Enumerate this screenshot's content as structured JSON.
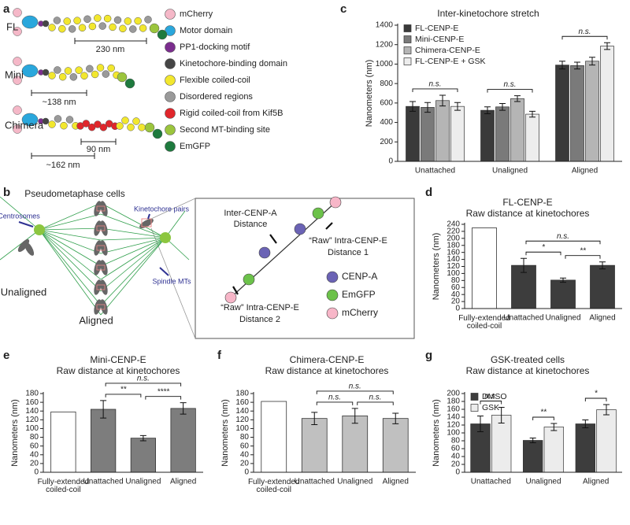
{
  "panel_labels": [
    "a",
    "b",
    "c",
    "d",
    "e",
    "f",
    "g"
  ],
  "diagram_a": {
    "constructs": [
      "FL",
      "Mini",
      "Chimera"
    ],
    "lengths": [
      "230 nm",
      "~138 nm",
      "90 nm",
      "~162 nm"
    ],
    "legend": [
      {
        "label": "mCherry",
        "color": "#f5b8c8"
      },
      {
        "label": "Motor domain",
        "color": "#2aa7dc"
      },
      {
        "label": "PP1-docking motif",
        "color": "#7b2d8e"
      },
      {
        "label": "Kinetochore-binding domain",
        "color": "#454545"
      },
      {
        "label": "Flexible coiled-coil",
        "color": "#f2e72e"
      },
      {
        "label": "Disordered regions",
        "color": "#9a9a9a"
      },
      {
        "label": "Rigid coiled-coil from Kif5B",
        "color": "#e0262b"
      },
      {
        "label": "Second MT-binding site",
        "color": "#9bc53d"
      },
      {
        "label": "EmGFP",
        "color": "#1e7a3e"
      }
    ]
  },
  "diagram_b": {
    "title": "Pseudometaphase cells",
    "kinetochore_pairs": "Kinetochore pairs",
    "centrosomes": "Centrosomes",
    "spindle": "Spindle MTs",
    "unaligned": "Unaligned",
    "aligned": "Aligned",
    "inset": {
      "inter": "Inter-CENP-A\nDistance",
      "intra1": "“Raw” Intra-CENP-E\nDistance 1",
      "intra2": "“Raw” Intra-CENP-E\nDistance 2",
      "legend": [
        {
          "label": "CENP-A",
          "color": "#6b63b5"
        },
        {
          "label": "EmGFP",
          "color": "#6cc24a"
        },
        {
          "label": "mCherry",
          "color": "#f7b6c8"
        }
      ]
    }
  },
  "chart_data": [
    {
      "type": "bar",
      "title": "Inter-kinetochore stretch",
      "ylabel": "Nanometers (nm)",
      "categories": [
        "Unattached",
        "Unaligned",
        "Aligned"
      ],
      "series": [
        {
          "name": "FL-CENP-E",
          "color": "#3a3a3a",
          "values": [
            565,
            525,
            990
          ],
          "errors": [
            50,
            35,
            40
          ]
        },
        {
          "name": "Mini-CENP-E",
          "color": "#7a7a7a",
          "values": [
            555,
            560,
            985
          ],
          "errors": [
            50,
            35,
            35
          ]
        },
        {
          "name": "Chimera-CENP-E",
          "color": "#b5b5b5",
          "values": [
            625,
            645,
            1030
          ],
          "errors": [
            55,
            30,
            40
          ]
        },
        {
          "name": "FL-CENP-E + GSK",
          "color": "#ededed",
          "values": [
            565,
            485,
            1185
          ],
          "errors": [
            40,
            30,
            35
          ]
        }
      ],
      "ylim": [
        0,
        1400
      ],
      "yticks": [
        0,
        200,
        400,
        600,
        800,
        1000,
        1200,
        1400
      ],
      "legend": "upper left",
      "annotations": [
        {
          "text": "n.s.",
          "category": 0
        },
        {
          "text": "n.s.",
          "category": 1
        },
        {
          "text": "n.s.",
          "category": 2
        }
      ]
    },
    {
      "type": "bar",
      "title": "FL-CENP-E",
      "subtitle": "Raw distance at kinetochores",
      "ylabel": "Nanometers (nm)",
      "categories": [
        "Fully-extended\ncoiled-coil",
        "Unattached",
        "Unaligned",
        "Aligned"
      ],
      "values": [
        230,
        123,
        81,
        123
      ],
      "errors": [
        null,
        20,
        6,
        10
      ],
      "colors": [
        "#ffffff",
        "#3d3d3d",
        "#3d3d3d",
        "#3d3d3d"
      ],
      "ylim": [
        0,
        240
      ],
      "yticks": [
        0,
        20,
        40,
        60,
        80,
        100,
        120,
        140,
        160,
        180,
        200,
        220,
        240
      ],
      "annotations": [
        {
          "text": "*",
          "between": [
            1,
            2
          ]
        },
        {
          "text": "**",
          "between": [
            2,
            3
          ]
        },
        {
          "text": "n.s.",
          "between": [
            1,
            3
          ]
        }
      ]
    },
    {
      "type": "bar",
      "title": "Mini-CENP-E",
      "subtitle": "Raw distance at kinetochores",
      "ylabel": "Nanometers (nm)",
      "categories": [
        "Fully-extended\ncoiled-coil",
        "Unattached",
        "Unaligned",
        "Aligned"
      ],
      "values": [
        138,
        144,
        78,
        146
      ],
      "errors": [
        null,
        20,
        6,
        13
      ],
      "colors": [
        "#ffffff",
        "#7d7d7d",
        "#7d7d7d",
        "#7d7d7d"
      ],
      "ylim": [
        0,
        180
      ],
      "yticks": [
        0,
        20,
        40,
        60,
        80,
        100,
        120,
        140,
        160,
        180
      ],
      "annotations": [
        {
          "text": "**",
          "between": [
            1,
            2
          ]
        },
        {
          "text": "****",
          "between": [
            2,
            3
          ]
        },
        {
          "text": "n.s.",
          "between": [
            1,
            3
          ]
        }
      ]
    },
    {
      "type": "bar",
      "title": "Chimera-CENP-E",
      "subtitle": "Raw distance at kinetochores",
      "ylabel": "Nanometers (nm)",
      "categories": [
        "Fully-extended\ncoiled-coil",
        "Unattached",
        "Unaligned",
        "Aligned"
      ],
      "values": [
        162,
        123,
        129,
        123
      ],
      "errors": [
        null,
        14,
        17,
        12
      ],
      "colors": [
        "#ffffff",
        "#c0c0c0",
        "#c0c0c0",
        "#c0c0c0"
      ],
      "ylim": [
        0,
        180
      ],
      "yticks": [
        0,
        20,
        40,
        60,
        80,
        100,
        120,
        140,
        160,
        180
      ],
      "annotations": [
        {
          "text": "n.s.",
          "between": [
            1,
            2
          ]
        },
        {
          "text": "n.s.",
          "between": [
            2,
            3
          ]
        },
        {
          "text": "n.s.",
          "between": [
            1,
            3
          ]
        }
      ]
    },
    {
      "type": "bar",
      "title": "GSK-treated cells",
      "subtitle": "Raw distance at kinetochores",
      "ylabel": "Nanometers (nm)",
      "categories": [
        "Unattached",
        "Unaligned",
        "Aligned"
      ],
      "series": [
        {
          "name": "DMSO",
          "color": "#3d3d3d",
          "values": [
            123,
            81,
            123
          ],
          "errors": [
            20,
            6,
            10
          ]
        },
        {
          "name": "GSK",
          "color": "#ececec",
          "values": [
            145,
            115,
            159
          ],
          "errors": [
            20,
            9,
            13
          ]
        }
      ],
      "ylim": [
        0,
        200
      ],
      "yticks": [
        0,
        20,
        40,
        60,
        80,
        100,
        120,
        140,
        160,
        180,
        200
      ],
      "legend": "upper left",
      "annotations": [
        {
          "text": "n.s.",
          "category": 0
        },
        {
          "text": "**",
          "category": 1
        },
        {
          "text": "*",
          "category": 2
        }
      ]
    }
  ]
}
